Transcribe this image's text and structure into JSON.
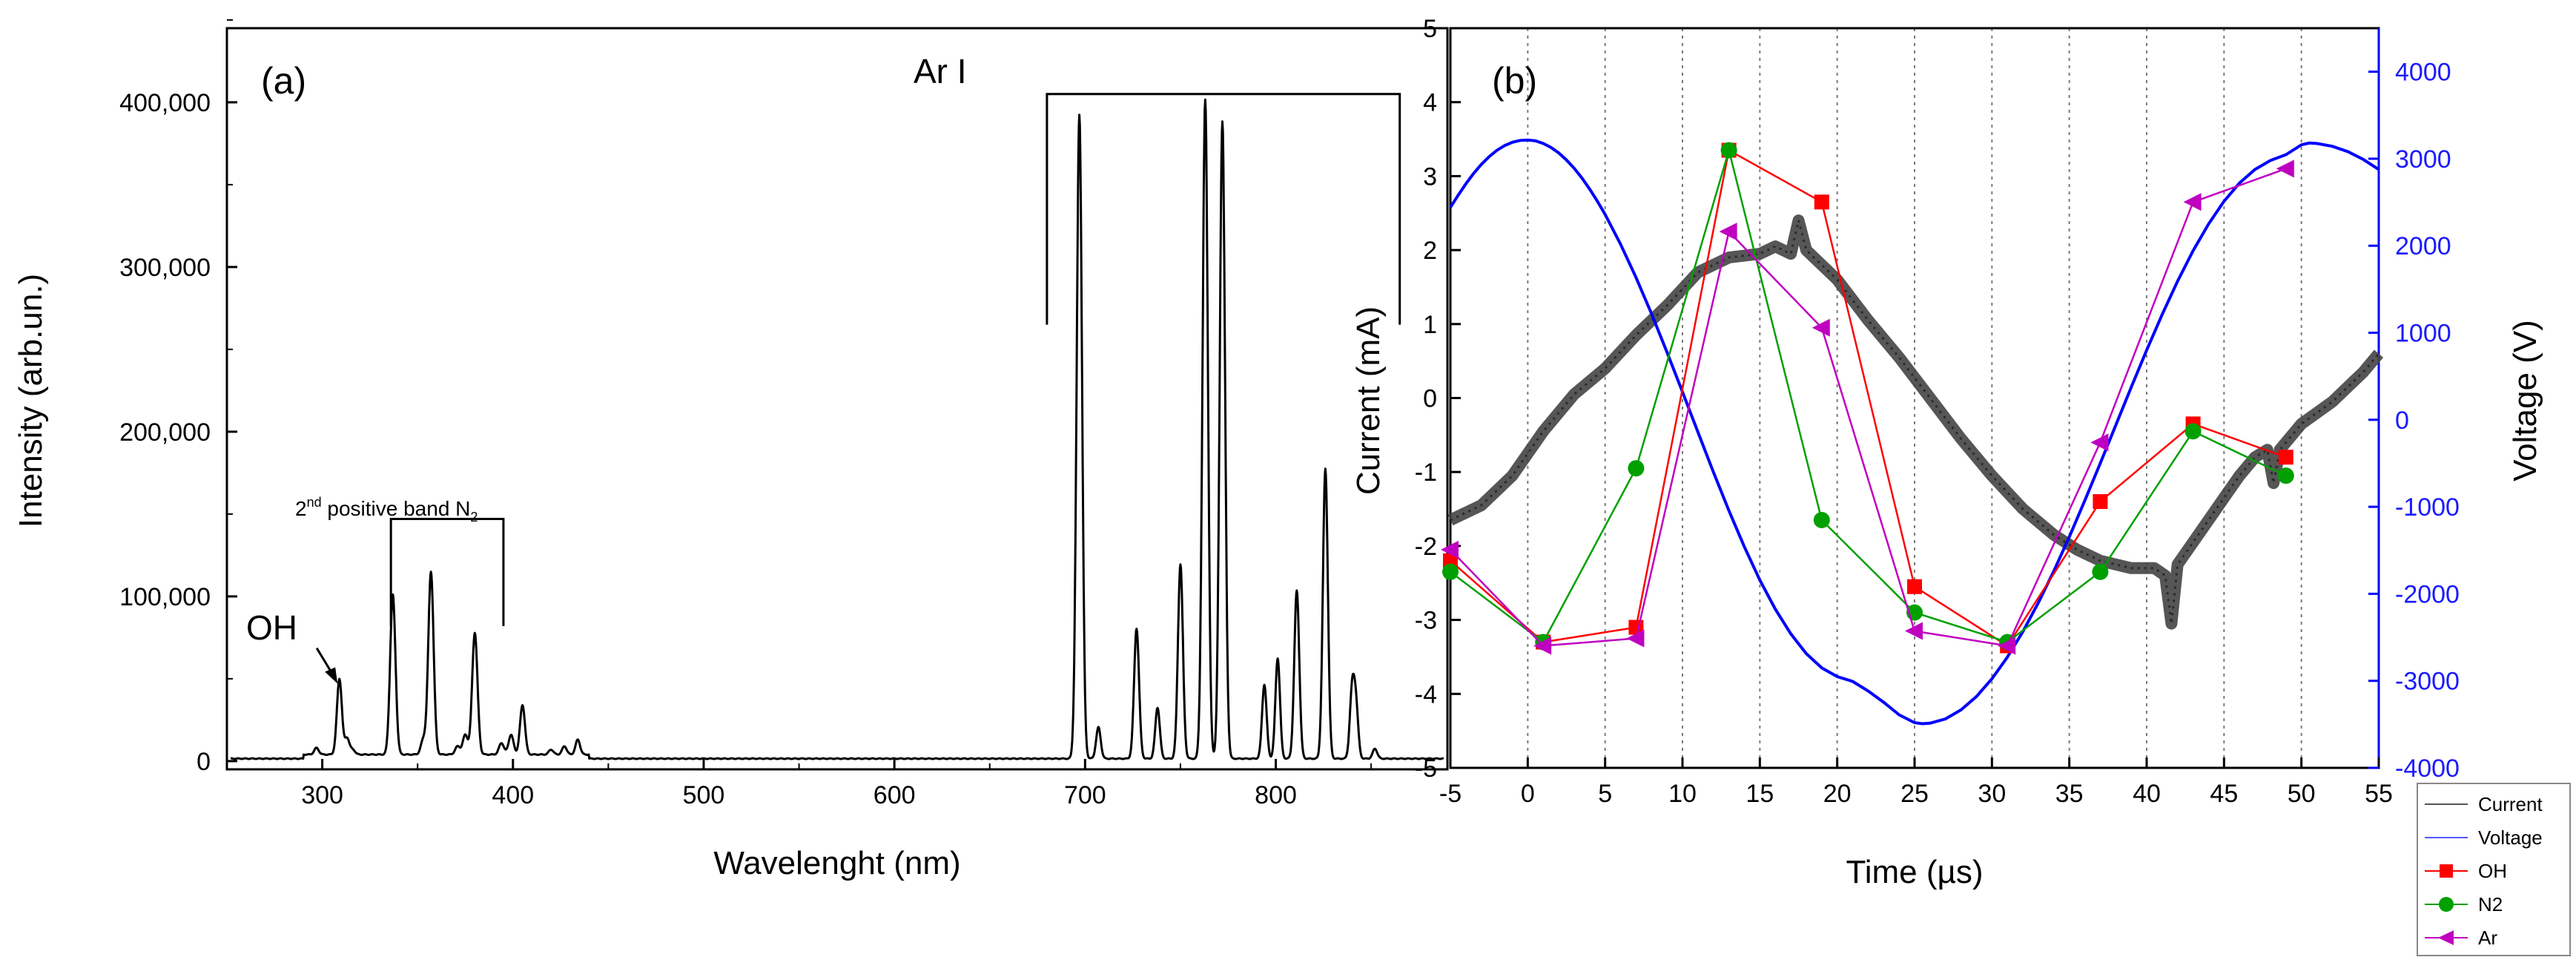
{
  "chart_data": [
    {
      "panel": "(a)",
      "type": "line",
      "xlabel": "Wavelenght (nm)",
      "ylabel": "Intensity (arb.un.)",
      "xlim": [
        250,
        890
      ],
      "ylim": [
        -5000,
        445000
      ],
      "xticks": [
        300,
        400,
        500,
        600,
        700,
        800
      ],
      "xtick_labels": [
        "300",
        "400",
        "500",
        "600",
        "700",
        "800"
      ],
      "yticks": [
        0,
        100000,
        200000,
        300000,
        400000
      ],
      "ytick_labels": [
        "0",
        "100,000",
        "200,000",
        "300,000",
        "400,000"
      ],
      "grid": false,
      "line_color": "#000000",
      "peaks": [
        {
          "x": 297,
          "y": 4000,
          "w": 1.2
        },
        {
          "x": 309,
          "y": 46000,
          "w": 1.3
        },
        {
          "x": 313,
          "y": 10000,
          "w": 1.2
        },
        {
          "x": 316,
          "y": 3000,
          "w": 1.2
        },
        {
          "x": 337,
          "y": 97000,
          "w": 1.4
        },
        {
          "x": 353,
          "y": 9000,
          "w": 1.3
        },
        {
          "x": 357,
          "y": 111000,
          "w": 1.4
        },
        {
          "x": 371,
          "y": 5000,
          "w": 1.3
        },
        {
          "x": 375,
          "y": 12000,
          "w": 1.3
        },
        {
          "x": 380,
          "y": 74000,
          "w": 1.4
        },
        {
          "x": 394,
          "y": 7000,
          "w": 1.3
        },
        {
          "x": 399,
          "y": 12000,
          "w": 1.3
        },
        {
          "x": 405,
          "y": 30000,
          "w": 1.3
        },
        {
          "x": 420,
          "y": 3000,
          "w": 1.2
        },
        {
          "x": 427,
          "y": 5000,
          "w": 1.2
        },
        {
          "x": 434,
          "y": 9000,
          "w": 1.2
        },
        {
          "x": 697,
          "y": 391000,
          "w": 1.4
        },
        {
          "x": 707,
          "y": 19000,
          "w": 1.2
        },
        {
          "x": 727,
          "y": 79000,
          "w": 1.3
        },
        {
          "x": 738,
          "y": 31000,
          "w": 1.2
        },
        {
          "x": 750,
          "y": 118000,
          "w": 1.3
        },
        {
          "x": 763,
          "y": 400000,
          "w": 1.4
        },
        {
          "x": 772,
          "y": 387000,
          "w": 1.4
        },
        {
          "x": 794,
          "y": 45000,
          "w": 1.2
        },
        {
          "x": 801,
          "y": 61000,
          "w": 1.2
        },
        {
          "x": 811,
          "y": 102000,
          "w": 1.3
        },
        {
          "x": 826,
          "y": 176000,
          "w": 1.3
        },
        {
          "x": 840,
          "y": 40000,
          "w": 1.2
        },
        {
          "x": 842,
          "y": 32000,
          "w": 1.2
        },
        {
          "x": 852,
          "y": 6000,
          "w": 1.2
        }
      ],
      "annotations": {
        "panel_label": "(a)",
        "oh_label": "OH",
        "n2_band_prefix": "2",
        "n2_band_sup": "nd",
        "n2_band_text": " positive band N",
        "n2_band_sub": "2",
        "ar_label": "Ar I"
      },
      "annotation_anchors": {
        "oh_arrow_target": [
          308,
          47000
        ],
        "n2_bracket": [
          336,
          395,
          147000
        ],
        "ar_bracket": [
          680,
          865,
          405000
        ]
      }
    },
    {
      "panel": "(b)",
      "type": "line+scatter",
      "xlabel": "Time (µs)",
      "ylabel": "Current (mA)",
      "ylabel_right": "Voltage (V)",
      "xlim": [
        -5,
        55
      ],
      "ylim": [
        -5,
        5
      ],
      "ylim_right": [
        -4000,
        4500
      ],
      "xticks": [
        -5,
        0,
        5,
        10,
        15,
        20,
        25,
        30,
        35,
        40,
        45,
        50,
        55
      ],
      "xtick_labels": [
        "-5",
        "0",
        "5",
        "10",
        "15",
        "20",
        "25",
        "30",
        "35",
        "40",
        "45",
        "50",
        "55"
      ],
      "yticks": [
        -5,
        -4,
        -3,
        -2,
        -1,
        0,
        1,
        2,
        3,
        4,
        5
      ],
      "ytick_labels": [
        "-5",
        "-4",
        "-3",
        "-2",
        "-1",
        "0",
        "1",
        "2",
        "3",
        "4",
        "5"
      ],
      "yticks_right": [
        -4000,
        -3000,
        -2000,
        -1000,
        0,
        1000,
        2000,
        3000,
        4000
      ],
      "ytick_labels_right": [
        "-4000",
        "-3000",
        "-2000",
        "-1000",
        "0",
        "1000",
        "2000",
        "3000",
        "4000"
      ],
      "vertical_gridlines": [
        0,
        5,
        10,
        15,
        20,
        25,
        30,
        35,
        40,
        45,
        50
      ],
      "panel_label": "(b)",
      "right_axis_color": "#1a1aff",
      "voltage": {
        "name": "Voltage",
        "color": "#0000ff",
        "amplitude_v": 3250,
        "period_us": 50.5,
        "peak_time_us": 0.5,
        "points": [
          [
            -5.0,
            2440
          ],
          [
            -4.5,
            2580
          ],
          [
            -4.0,
            2711
          ],
          [
            -3.5,
            2831
          ],
          [
            -3.0,
            2935
          ],
          [
            -2.5,
            3023
          ],
          [
            -2.0,
            3096
          ],
          [
            -1.5,
            3150
          ],
          [
            -1.0,
            3189
          ],
          [
            -0.5,
            3210
          ],
          [
            0.0,
            3215
          ],
          [
            0.5,
            3205
          ],
          [
            1.0,
            3176
          ],
          [
            1.5,
            3130
          ],
          [
            2.0,
            3067
          ],
          [
            2.5,
            2986
          ],
          [
            3.0,
            2890
          ],
          [
            3.5,
            2778
          ],
          [
            4.0,
            2652
          ],
          [
            4.5,
            2512
          ],
          [
            5.0,
            2359
          ],
          [
            6.0,
            2017
          ],
          [
            7.0,
            1634
          ],
          [
            8.0,
            1218
          ],
          [
            9.0,
            777
          ],
          [
            10.0,
            320
          ],
          [
            11.0,
            -143
          ],
          [
            12.0,
            -601
          ],
          [
            13.0,
            -1044
          ],
          [
            14.0,
            -1461
          ],
          [
            15.0,
            -1841
          ],
          [
            16.0,
            -2176
          ],
          [
            17.0,
            -2460
          ],
          [
            18.0,
            -2687
          ],
          [
            19.0,
            -2851
          ],
          [
            20.0,
            -2951
          ],
          [
            21.0,
            -3007
          ],
          [
            22.0,
            -3117
          ],
          [
            23.0,
            -3246
          ],
          [
            24.0,
            -3390
          ],
          [
            25.0,
            -3481
          ],
          [
            25.5,
            -3493
          ],
          [
            26.0,
            -3487
          ],
          [
            27.0,
            -3437
          ],
          [
            28.0,
            -3334
          ],
          [
            29.0,
            -3180
          ],
          [
            30.0,
            -2977
          ],
          [
            31.0,
            -2727
          ],
          [
            32.0,
            -2434
          ],
          [
            33.0,
            -2103
          ],
          [
            34.0,
            -1738
          ],
          [
            35.0,
            -1345
          ],
          [
            36.0,
            -930
          ],
          [
            37.0,
            -500
          ],
          [
            38.0,
            -63
          ],
          [
            39.0,
            373
          ],
          [
            40.0,
            800
          ],
          [
            41.0,
            1210
          ],
          [
            42.0,
            1593
          ],
          [
            43.0,
            1942
          ],
          [
            44.0,
            2250
          ],
          [
            45.0,
            2511
          ],
          [
            46.0,
            2721
          ],
          [
            47.0,
            2877
          ],
          [
            48.0,
            2980
          ],
          [
            49.0,
            3046
          ],
          [
            50.0,
            3160
          ],
          [
            50.5,
            3180
          ],
          [
            51.0,
            3175
          ],
          [
            52.0,
            3143
          ],
          [
            53.0,
            3082
          ],
          [
            54.0,
            2992
          ],
          [
            55.0,
            2877
          ]
        ]
      },
      "current": {
        "name": "Current",
        "color": "#444444",
        "points": [
          [
            -5.0,
            -1.65
          ],
          [
            -3.0,
            -1.45
          ],
          [
            -1.0,
            -1.05
          ],
          [
            1.0,
            -0.45
          ],
          [
            3.0,
            0.05
          ],
          [
            5.0,
            0.4
          ],
          [
            7.0,
            0.85
          ],
          [
            9.0,
            1.25
          ],
          [
            11.0,
            1.7
          ],
          [
            13.0,
            1.9
          ],
          [
            15.0,
            1.95
          ],
          [
            16.0,
            2.05
          ],
          [
            17.0,
            1.95
          ],
          [
            17.5,
            2.4
          ],
          [
            18.0,
            2.0
          ],
          [
            20.0,
            1.6
          ],
          [
            22.0,
            1.05
          ],
          [
            24.0,
            0.55
          ],
          [
            26.0,
            0.0
          ],
          [
            28.0,
            -0.55
          ],
          [
            30.0,
            -1.05
          ],
          [
            32.0,
            -1.5
          ],
          [
            34.0,
            -1.85
          ],
          [
            35.5,
            -2.05
          ],
          [
            37.0,
            -2.2
          ],
          [
            39.0,
            -2.3
          ],
          [
            40.5,
            -2.3
          ],
          [
            41.2,
            -2.4
          ],
          [
            41.6,
            -3.05
          ],
          [
            42.0,
            -2.25
          ],
          [
            43.0,
            -1.95
          ],
          [
            44.0,
            -1.65
          ],
          [
            45.0,
            -1.35
          ],
          [
            46.0,
            -1.05
          ],
          [
            47.0,
            -0.8
          ],
          [
            47.8,
            -0.7
          ],
          [
            48.2,
            -1.15
          ],
          [
            48.6,
            -0.7
          ],
          [
            50.0,
            -0.35
          ],
          [
            52.0,
            -0.05
          ],
          [
            54.0,
            0.35
          ],
          [
            55.0,
            0.6
          ]
        ]
      },
      "series": [
        {
          "name": "OH",
          "color": "#ff0000",
          "marker": "square",
          "x": [
            -5,
            1,
            7,
            13,
            19,
            25,
            31,
            37,
            43,
            49
          ],
          "y": [
            -2.2,
            -3.3,
            -3.1,
            3.35,
            2.65,
            -2.55,
            -3.35,
            -1.4,
            -0.35,
            -0.8
          ]
        },
        {
          "name": "N2",
          "color": "#00a000",
          "marker": "circle",
          "x": [
            -5,
            1,
            7,
            13,
            19,
            25,
            31,
            37,
            43,
            49
          ],
          "y": [
            -2.35,
            -3.3,
            -0.95,
            3.35,
            -1.65,
            -2.9,
            -3.3,
            -2.35,
            -0.45,
            -1.05
          ]
        },
        {
          "name": "Ar",
          "color": "#c000c0",
          "marker": "triangle-left",
          "x": [
            -5,
            1,
            7,
            13,
            19,
            25,
            31,
            37,
            43,
            49
          ],
          "y": [
            -2.05,
            -3.35,
            -3.25,
            2.25,
            0.95,
            -3.15,
            -3.35,
            -0.6,
            2.65,
            3.1
          ]
        }
      ],
      "legend": [
        {
          "label": "Current",
          "kind": "line",
          "color": "#555555"
        },
        {
          "label": "Voltage",
          "kind": "line",
          "color": "#5555ff"
        },
        {
          "label": "OH",
          "kind": "square",
          "color": "#ff0000"
        },
        {
          "label": "N2",
          "kind": "circle",
          "color": "#00a000"
        },
        {
          "label": "Ar",
          "kind": "triangle-left",
          "color": "#c000c0"
        }
      ],
      "legend_position": "bottom-right outside"
    }
  ]
}
